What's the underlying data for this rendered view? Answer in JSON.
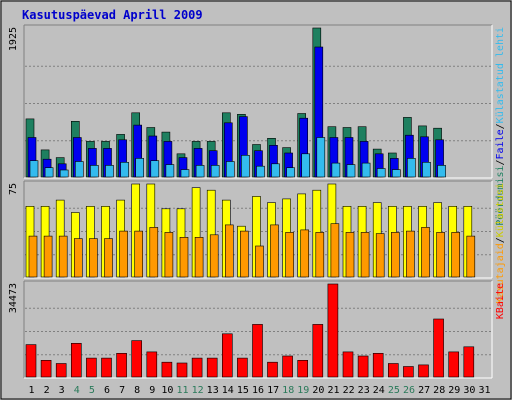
{
  "chart_data": {
    "type": "bar",
    "title": "Kasutuspäevad Aprill 2009",
    "categories": [
      "1",
      "2",
      "3",
      "4",
      "5",
      "6",
      "7",
      "8",
      "9",
      "10",
      "11",
      "12",
      "13",
      "14",
      "15",
      "16",
      "17",
      "18",
      "19",
      "20",
      "21",
      "22",
      "23",
      "24",
      "25",
      "26",
      "27",
      "28",
      "29",
      "30",
      "31"
    ],
    "weekend_days": [
      4,
      5,
      11,
      12,
      18,
      19,
      25,
      26
    ],
    "colors": {
      "frame": "#c0c0c0",
      "background": "#ffffff",
      "title": "#0000cc",
      "weekday_label": "#000000",
      "weekend_label": "#2a7a5a",
      "visits": "#1e8060",
      "pages": "#0000ee",
      "files": "#33bbee",
      "sites": "#ffff00",
      "hits": "#ff9900",
      "kbytes": "#ff0000"
    },
    "panels": [
      {
        "max_label": "1925",
        "legend": [
          {
            "text": "Pöördumisi",
            "color": "#1e8060"
          },
          {
            "text": "/",
            "color": "#000000"
          },
          {
            "text": "Faile",
            "color": "#0000ee"
          },
          {
            "text": "/",
            "color": "#000000"
          },
          {
            "text": "Külastatud lehti",
            "color": "#33bbee"
          }
        ],
        "ylim": [
          0,
          1925
        ],
        "series": [
          {
            "name": "Pöördumisi",
            "color": "#1e8060",
            "values": [
              750,
              350,
              250,
              720,
              460,
              460,
              550,
              830,
              640,
              580,
              300,
              460,
              460,
              830,
              810,
              420,
              500,
              380,
              820,
              1925,
              650,
              640,
              650,
              360,
              310,
              770,
              660,
              630
            ]
          },
          {
            "name": "Faile",
            "color": "#0000ee",
            "values": [
              510,
              230,
              170,
              510,
              370,
              370,
              480,
              670,
              530,
              460,
              250,
              370,
              340,
              700,
              780,
              340,
              410,
              310,
              760,
              1680,
              510,
              510,
              460,
              300,
              240,
              540,
              520,
              480
            ]
          },
          {
            "name": "Külastatud lehti",
            "color": "#33bbee",
            "values": [
              210,
              120,
              90,
              200,
              150,
              150,
              190,
              240,
              210,
              160,
              95,
              150,
              150,
              200,
              280,
              140,
              170,
              120,
              300,
              510,
              180,
              160,
              180,
              110,
              95,
              240,
              190,
              150
            ]
          }
        ]
      },
      {
        "max_label": "75",
        "legend": [
          {
            "text": "Kasutajaid",
            "color": "#ff9900"
          },
          {
            "text": "/",
            "color": "#000000"
          },
          {
            "text": "Külastusi",
            "color": "#cccc00"
          }
        ],
        "ylim": [
          0,
          75
        ],
        "series": [
          {
            "name": "Külastusi",
            "color": "#ffff00",
            "values": [
              57,
              57,
              62,
              52,
              57,
              57,
              62,
              75,
              75,
              55,
              55,
              72,
              70,
              62,
              41,
              65,
              60,
              63,
              67,
              70,
              75,
              57,
              57,
              60,
              57,
              57,
              57,
              60,
              57,
              57
            ]
          },
          {
            "name": "Kasutajaid",
            "color": "#ff9900",
            "values": [
              33,
              33,
              33,
              31,
              31,
              31,
              37,
              37,
              40,
              36,
              32,
              32,
              34,
              42,
              37,
              25,
              42,
              36,
              38,
              36,
              43,
              36,
              36,
              35,
              36,
              37,
              40,
              36,
              36,
              33
            ]
          }
        ]
      },
      {
        "max_label": "34473",
        "legend": [
          {
            "text": "KBaite",
            "color": "#ff0000"
          }
        ],
        "ylim": [
          0,
          34473
        ],
        "series": [
          {
            "name": "KBaite",
            "color": "#ff0000",
            "values": [
              12000,
              6200,
              5000,
              12500,
              7000,
              7000,
              8800,
              13500,
              9300,
              5500,
              5200,
              7000,
              7000,
              16000,
              7000,
              19500,
              5500,
              7800,
              6200,
              19500,
              34473,
              9300,
              7800,
              8800,
              5000,
              3900,
              4500,
              21500,
              9300,
              11200
            ]
          }
        ]
      }
    ]
  }
}
